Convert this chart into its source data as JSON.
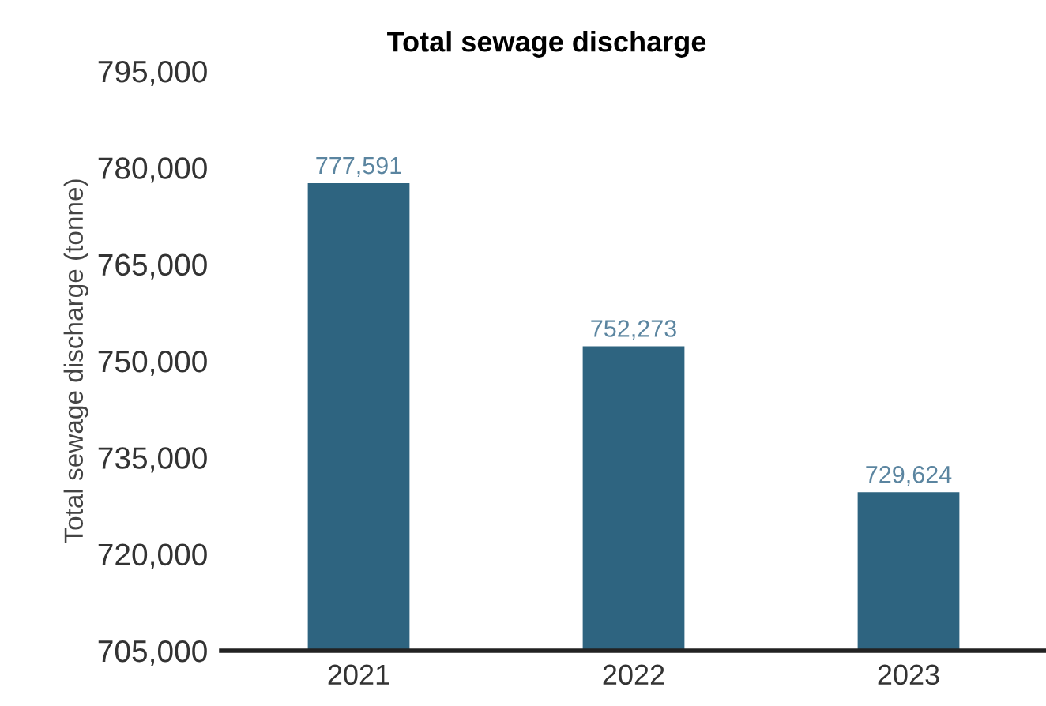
{
  "chart_data": {
    "type": "bar",
    "title": "Total sewage discharge",
    "ylabel": "Total sewage discharge (tonne)",
    "categories": [
      "2021",
      "2022",
      "2023"
    ],
    "series": [
      {
        "color": "#2e6480",
        "values": [
          777591,
          752273,
          729624
        ]
      }
    ],
    "value_labels": [
      "777,591",
      "752,273",
      "729,624"
    ],
    "ylim": [
      705000,
      795000
    ],
    "yticks": [
      {
        "value": 705000,
        "label": "705,000"
      },
      {
        "value": 720000,
        "label": "720,000"
      },
      {
        "value": 735000,
        "label": "735,000"
      },
      {
        "value": 750000,
        "label": "750,000"
      },
      {
        "value": 765000,
        "label": "765,000"
      },
      {
        "value": 780000,
        "label": "780,000"
      },
      {
        "value": 795000,
        "label": "795,000"
      }
    ],
    "grid": false,
    "legend": false
  }
}
